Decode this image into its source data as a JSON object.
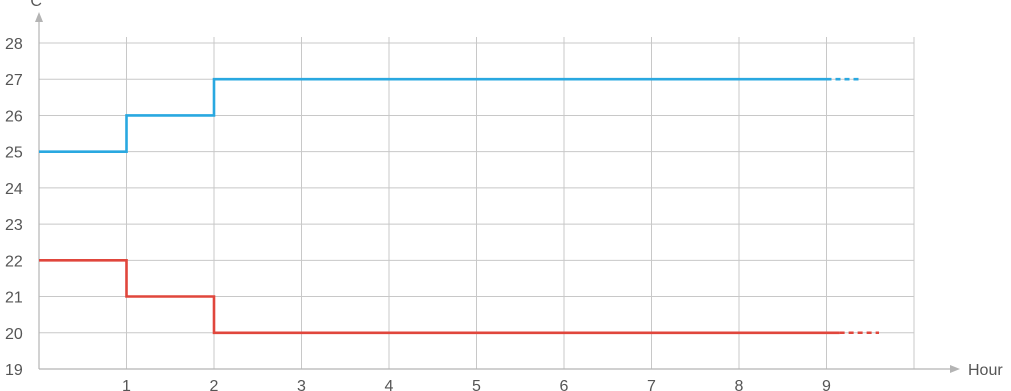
{
  "chart_data": {
    "type": "line",
    "title": "",
    "xlabel": "Hour",
    "ylabel": "°C",
    "xlim": [
      0,
      10
    ],
    "ylim": [
      19,
      28
    ],
    "x_ticks": [
      1,
      2,
      3,
      4,
      5,
      6,
      7,
      8,
      9
    ],
    "y_ticks": [
      19,
      20,
      21,
      22,
      23,
      24,
      25,
      26,
      27,
      28
    ],
    "grid": true,
    "interpolation": "step",
    "series": [
      {
        "color": "#29a8e0",
        "points": [
          [
            0,
            25
          ],
          [
            1,
            25
          ],
          [
            1,
            26
          ],
          [
            2,
            26
          ],
          [
            2,
            27
          ],
          [
            9,
            27
          ]
        ],
        "dashed_extension": [
          [
            9,
            27
          ],
          [
            9.4,
            27
          ]
        ]
      },
      {
        "color": "#e0463c",
        "points": [
          [
            0,
            22
          ],
          [
            1,
            22
          ],
          [
            1,
            21
          ],
          [
            2,
            21
          ],
          [
            2,
            20
          ],
          [
            9.15,
            20
          ]
        ],
        "dashed_extension": [
          [
            9.15,
            20
          ],
          [
            9.6,
            20
          ]
        ]
      }
    ]
  }
}
